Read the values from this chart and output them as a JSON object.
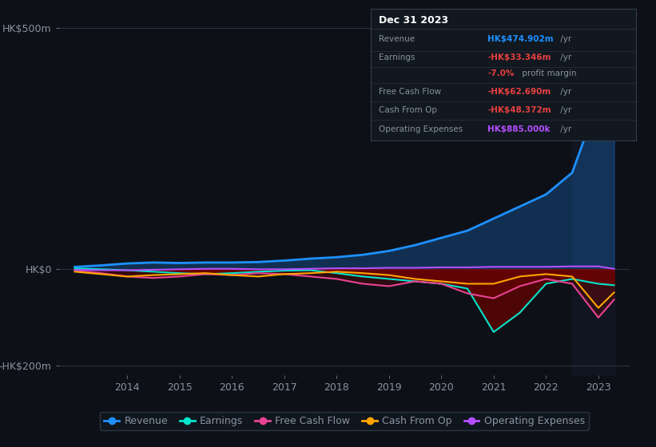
{
  "background_color": "#0d1117",
  "plot_bg_color": "#0d1117",
  "grid_color": "#2a3040",
  "text_color": "#8892a0",
  "title_color": "#ffffff",
  "years": [
    2013,
    2013.5,
    2014,
    2014.5,
    2015,
    2015.5,
    2016,
    2016.5,
    2017,
    2017.5,
    2018,
    2018.5,
    2019,
    2019.5,
    2020,
    2020.5,
    2021,
    2021.5,
    2022,
    2022.5,
    2023,
    2023.3
  ],
  "revenue": [
    5,
    8,
    12,
    14,
    13,
    14,
    14,
    15,
    18,
    22,
    25,
    30,
    38,
    50,
    65,
    80,
    105,
    130,
    155,
    200,
    350,
    475
  ],
  "earnings": [
    2,
    0,
    -2,
    -5,
    -8,
    -10,
    -8,
    -5,
    -3,
    -2,
    -8,
    -15,
    -20,
    -25,
    -30,
    -40,
    -130,
    -90,
    -30,
    -20,
    -30,
    -33
  ],
  "free_cash_flow": [
    -3,
    -8,
    -15,
    -18,
    -15,
    -10,
    -12,
    -8,
    -10,
    -15,
    -20,
    -30,
    -35,
    -25,
    -30,
    -50,
    -60,
    -35,
    -20,
    -30,
    -100,
    -63
  ],
  "cash_from_op": [
    -5,
    -10,
    -15,
    -12,
    -10,
    -8,
    -12,
    -15,
    -10,
    -8,
    -5,
    -8,
    -12,
    -20,
    -25,
    -30,
    -30,
    -15,
    -10,
    -15,
    -80,
    -48
  ],
  "operating_expenses": [
    -1,
    -2,
    -2,
    -1,
    0,
    1,
    1,
    0,
    0,
    1,
    2,
    2,
    3,
    3,
    4,
    4,
    5,
    5,
    5,
    6,
    6,
    1
  ],
  "revenue_color": "#1e90ff",
  "earnings_color": "#00e5cc",
  "free_cash_flow_color": "#e84393",
  "cash_from_op_color": "#ffa500",
  "operating_expenses_color": "#b44fff",
  "ylim": [
    -220,
    530
  ],
  "yticks": [
    -200,
    0,
    500
  ],
  "ytick_labels": [
    "-HK$200m",
    "HK$0",
    "HK$500m"
  ],
  "xticks": [
    2014,
    2015,
    2016,
    2017,
    2018,
    2019,
    2020,
    2021,
    2022,
    2023
  ],
  "annotation_box": {
    "title": "Dec 31 2023",
    "rows": [
      {
        "label": "Revenue",
        "value": "HK$474.902m",
        "value_color": "#1e90ff",
        "suffix": " /yr"
      },
      {
        "label": "Earnings",
        "value": "-HK$33.346m",
        "value_color": "#e84040",
        "suffix": " /yr"
      },
      {
        "label": "",
        "value": "-7.0%",
        "value_color": "#e84040",
        "suffix": " profit margin"
      },
      {
        "label": "Free Cash Flow",
        "value": "-HK$62.690m",
        "value_color": "#e84040",
        "suffix": " /yr"
      },
      {
        "label": "Cash From Op",
        "value": "-HK$48.372m",
        "value_color": "#e84040",
        "suffix": " /yr"
      },
      {
        "label": "Operating Expenses",
        "value": "HK$885.000k",
        "value_color": "#b44fff",
        "suffix": " /yr"
      }
    ]
  },
  "legend_items": [
    {
      "label": "Revenue",
      "color": "#1e90ff"
    },
    {
      "label": "Earnings",
      "color": "#00e5cc"
    },
    {
      "label": "Free Cash Flow",
      "color": "#e84393"
    },
    {
      "label": "Cash From Op",
      "color": "#ffa500"
    },
    {
      "label": "Operating Expenses",
      "color": "#b44fff"
    }
  ]
}
